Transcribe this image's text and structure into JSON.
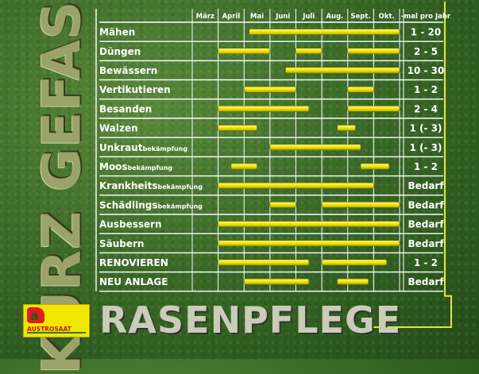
{
  "side_title": "KURZ GEFASST",
  "bottom_title": "RASENPFLEGE",
  "logo": {
    "mark": "a",
    "name": "AUSTROSAAT"
  },
  "colors": {
    "bar": "#f2e600",
    "accent_line": "#e8e23a",
    "grid": "#ffffff"
  },
  "chart_data": {
    "type": "bar",
    "orientation": "gantt",
    "months": [
      "März",
      "April",
      "Mai",
      "Juni",
      "Juli",
      "Aug.",
      "Sept.",
      "Okt."
    ],
    "freq_header": "-mal pro Jahr",
    "rows": [
      {
        "label": "Mähen",
        "sub": "",
        "frequency": "1 - 20",
        "bars": [
          [
            2.2,
            8.0
          ]
        ]
      },
      {
        "label": "Düngen",
        "sub": "",
        "frequency": "2 - 5",
        "bars": [
          [
            1.0,
            3.0
          ],
          [
            4.0,
            5.0
          ],
          [
            6.0,
            8.0
          ]
        ]
      },
      {
        "label": "Bewässern",
        "sub": "",
        "frequency": "10 - 30",
        "bars": [
          [
            3.6,
            8.0
          ]
        ]
      },
      {
        "label": "Vertikutieren",
        "sub": "",
        "frequency": "1 - 2",
        "bars": [
          [
            2.0,
            4.0
          ],
          [
            6.0,
            7.0
          ]
        ]
      },
      {
        "label": "Besanden",
        "sub": "",
        "frequency": "2 - 4",
        "bars": [
          [
            1.0,
            4.5
          ],
          [
            6.0,
            8.0
          ]
        ]
      },
      {
        "label": "Walzen",
        "sub": "",
        "frequency": "1 (- 3)",
        "bars": [
          [
            1.0,
            2.5
          ],
          [
            5.6,
            6.3
          ]
        ]
      },
      {
        "label": "Unkraut",
        "sub": "bekämpfung",
        "frequency": "1 (- 3)",
        "bars": [
          [
            3.0,
            6.5
          ]
        ]
      },
      {
        "label": "Moos",
        "sub": "bekämpfung",
        "frequency": "1 - 2",
        "bars": [
          [
            1.5,
            2.5
          ],
          [
            6.5,
            7.6
          ]
        ]
      },
      {
        "label": "Krankheits",
        "sub": "bekämpfung",
        "frequency": "Bedarf",
        "bars": [
          [
            1.0,
            7.0
          ]
        ]
      },
      {
        "label": "Schädlings",
        "sub": "bekämpfung",
        "frequency": "Bedarf",
        "bars": [
          [
            3.0,
            4.0
          ],
          [
            5.0,
            8.0
          ]
        ]
      },
      {
        "label": "Ausbessern",
        "sub": "",
        "frequency": "Bedarf",
        "bars": [
          [
            1.0,
            8.0
          ]
        ]
      },
      {
        "label": "Säubern",
        "sub": "",
        "frequency": "Bedarf",
        "bars": [
          [
            1.0,
            8.0
          ]
        ]
      },
      {
        "label": "RENOVIEREN",
        "sub": "",
        "frequency": "1 - 2",
        "bars": [
          [
            1.0,
            4.5
          ],
          [
            5.0,
            7.5
          ]
        ]
      },
      {
        "label": "NEU ANLAGE",
        "sub": "",
        "frequency": "Bedarf",
        "bars": [
          [
            2.0,
            4.5
          ],
          [
            5.6,
            6.8
          ]
        ]
      }
    ]
  }
}
